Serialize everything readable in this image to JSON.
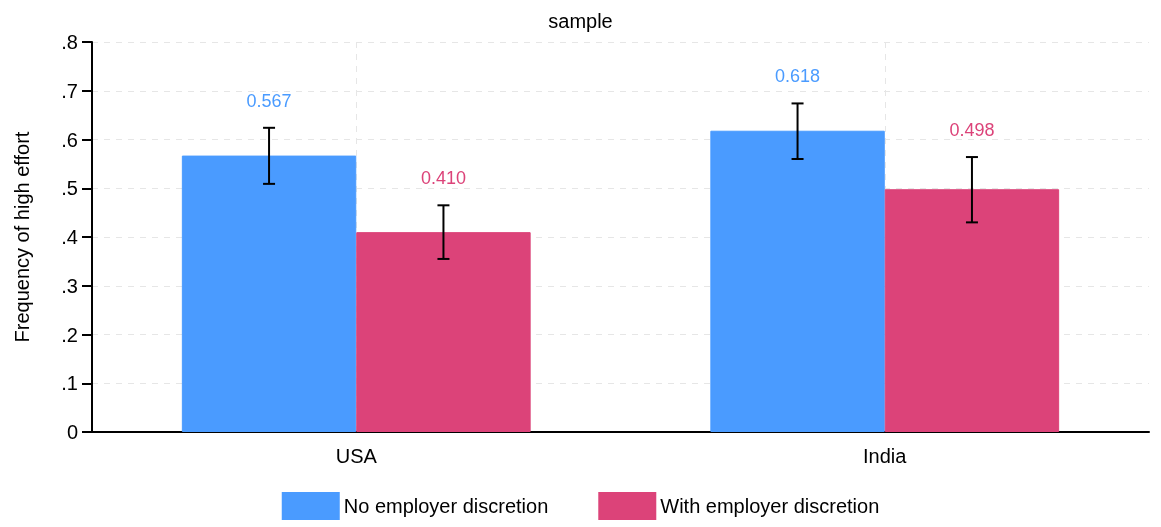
{
  "chart_data": {
    "type": "bar",
    "title": "sample",
    "ylabel": "Frequency of high effort",
    "categories": [
      "USA",
      "India"
    ],
    "series": [
      {
        "name": "No employer discretion",
        "color": "#4a9bff",
        "values": [
          0.567,
          0.618
        ],
        "errors": [
          [
            0.509,
            0.624
          ],
          [
            0.56,
            0.674
          ]
        ],
        "value_labels": [
          "0.567",
          "0.618"
        ]
      },
      {
        "name": "With employer discretion",
        "color": "#dc4379",
        "values": [
          0.41,
          0.498
        ],
        "errors": [
          [
            0.355,
            0.465
          ],
          [
            0.43,
            0.564
          ]
        ],
        "value_labels": [
          "0.410",
          "0.498"
        ]
      }
    ],
    "ylim": [
      0,
      0.8
    ],
    "yticks": [
      {
        "value": 0,
        "label": "0"
      },
      {
        "value": 0.1,
        "label": ".1"
      },
      {
        "value": 0.2,
        "label": ".2"
      },
      {
        "value": 0.3,
        "label": ".3"
      },
      {
        "value": 0.4,
        "label": ".4"
      },
      {
        "value": 0.5,
        "label": ".5"
      },
      {
        "value": 0.6,
        "label": ".6"
      },
      {
        "value": 0.7,
        "label": ".7"
      },
      {
        "value": 0.8,
        "label": ".8"
      }
    ],
    "grid": true,
    "legend": "bottom"
  }
}
